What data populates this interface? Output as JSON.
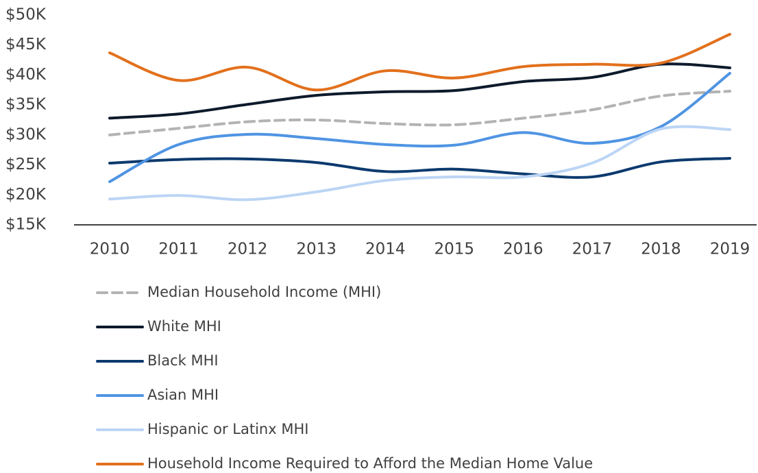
{
  "chart_data": {
    "type": "line",
    "x": [
      "2010",
      "2011",
      "2012",
      "2013",
      "2014",
      "2015",
      "2016",
      "2017",
      "2018",
      "2019"
    ],
    "ylim": [
      15000,
      50000
    ],
    "yticks": [
      {
        "value": 15000,
        "label": "$15K"
      },
      {
        "value": 20000,
        "label": "$20K"
      },
      {
        "value": 25000,
        "label": "$25K"
      },
      {
        "value": 30000,
        "label": "$30K"
      },
      {
        "value": 35000,
        "label": "$35K"
      },
      {
        "value": 40000,
        "label": "$40K"
      },
      {
        "value": 45000,
        "label": "$45K"
      },
      {
        "value": 50000,
        "label": "$50K"
      }
    ],
    "grid": false,
    "legend": "bottom",
    "series": [
      {
        "name": "Median Household Income (MHI)",
        "color": "#b3b3b3",
        "dashed": true,
        "values": [
          30000,
          31100,
          32200,
          32500,
          31900,
          31700,
          32800,
          34200,
          36500,
          37300
        ]
      },
      {
        "name": "White MHI",
        "color": "#0d1a2b",
        "values": [
          32800,
          33500,
          35100,
          36600,
          37200,
          37400,
          38900,
          39600,
          41800,
          41200
        ]
      },
      {
        "name": "Black MHI",
        "color": "#0c3a6e",
        "values": [
          25300,
          25900,
          26000,
          25400,
          23900,
          24300,
          23500,
          23000,
          25500,
          26100
        ]
      },
      {
        "name": "Asian MHI",
        "color": "#4f94e3",
        "values": [
          22200,
          28400,
          30100,
          29400,
          28400,
          28300,
          30400,
          28600,
          31400,
          40300
        ]
      },
      {
        "name": "Hispanic or Latinx MHI",
        "color": "#bcd5f5",
        "values": [
          19300,
          19900,
          19200,
          20500,
          22400,
          23000,
          23000,
          25300,
          31000,
          30900
        ]
      },
      {
        "name": "Household Income Required to Afford the Median Home Value",
        "color": "#e2701c",
        "values": [
          43700,
          39100,
          41300,
          37500,
          40700,
          39500,
          41400,
          41800,
          42000,
          46800
        ]
      }
    ]
  }
}
